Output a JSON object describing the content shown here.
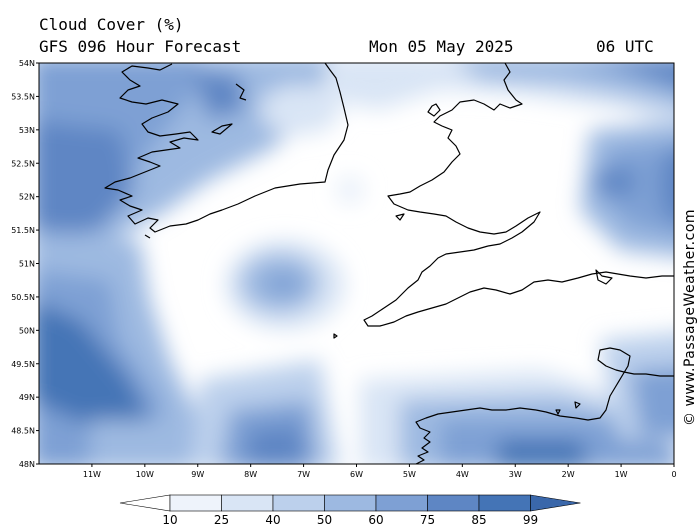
{
  "title": {
    "line1": "Cloud Cover (%)",
    "line2": "GFS 096 Hour Forecast",
    "date": "Mon 05 May 2025",
    "time": "06 UTC"
  },
  "credit": "© www.PassageWeather.com",
  "map": {
    "lon_range": [
      -12,
      0
    ],
    "lat_range": [
      48,
      54
    ],
    "lat_ticks": [
      "54N",
      "53.5N",
      "53N",
      "52.5N",
      "52N",
      "51.5N",
      "51N",
      "50.5N",
      "50N",
      "49.5N",
      "49N",
      "48.5N",
      "48N"
    ],
    "lon_ticks": [
      "11W",
      "10W",
      "9W",
      "8W",
      "7W",
      "6W",
      "5W",
      "4W",
      "3W",
      "2W",
      "1W",
      "0"
    ]
  },
  "colorbar": {
    "labels": [
      "10",
      "25",
      "40",
      "50",
      "60",
      "75",
      "85",
      "99"
    ],
    "colors": [
      "#ffffff",
      "#eef3fb",
      "#d9e5f5",
      "#bcd0ec",
      "#9db9e1",
      "#7ea0d4",
      "#5e86c4",
      "#4474b6",
      "#3a67aa"
    ]
  }
}
